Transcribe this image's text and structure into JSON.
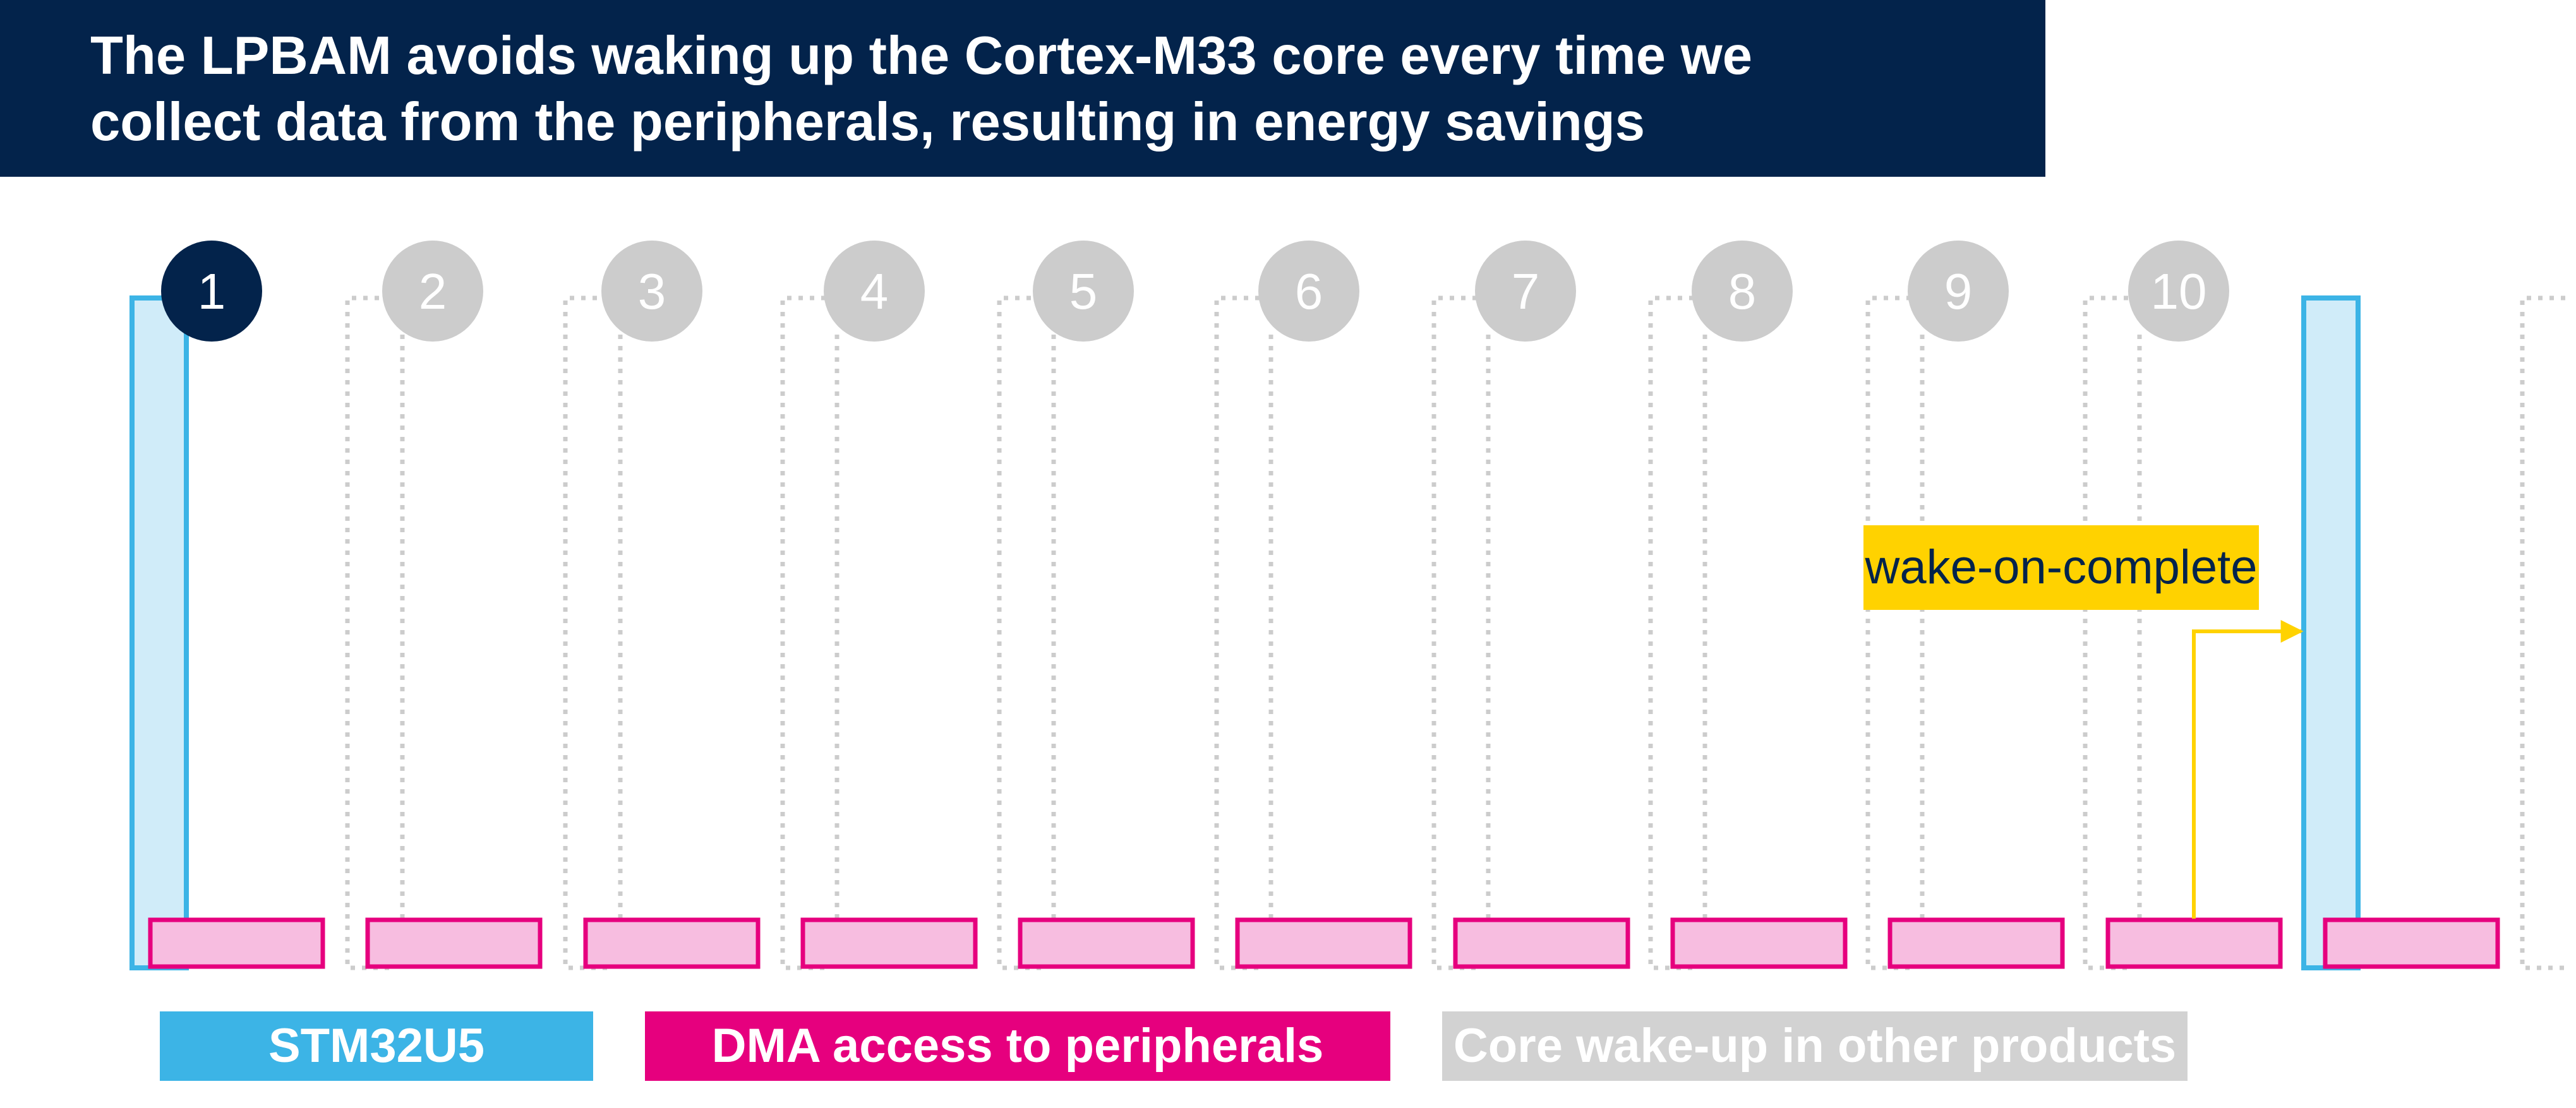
{
  "header": {
    "title_line_1": "The LPBAM avoids waking up the Cortex-M33 core every time we",
    "title_line_2": "collect data from the peripherals, resulting in energy savings"
  },
  "steps": {
    "labels": [
      "1",
      "2",
      "3",
      "4",
      "5",
      "6",
      "7",
      "8",
      "9",
      "10"
    ],
    "active_index": 0
  },
  "annotation": {
    "wake_label": "wake-on-complete"
  },
  "legend": {
    "stm32u5": {
      "label": "STM32U5",
      "color": "#3cb4e6"
    },
    "dma": {
      "label": "DMA access to peripherals",
      "color": "#e6007e"
    },
    "core_wakeup": {
      "label": "Core wake-up in other products",
      "color": "#d2d2d2"
    }
  },
  "colors": {
    "navy": "#03234b",
    "cortex_fill": "#d0ecf9",
    "dma_fill": "#f7bde0",
    "inactive_step": "#cccccc",
    "wake_arrow": "#ffd200"
  }
}
